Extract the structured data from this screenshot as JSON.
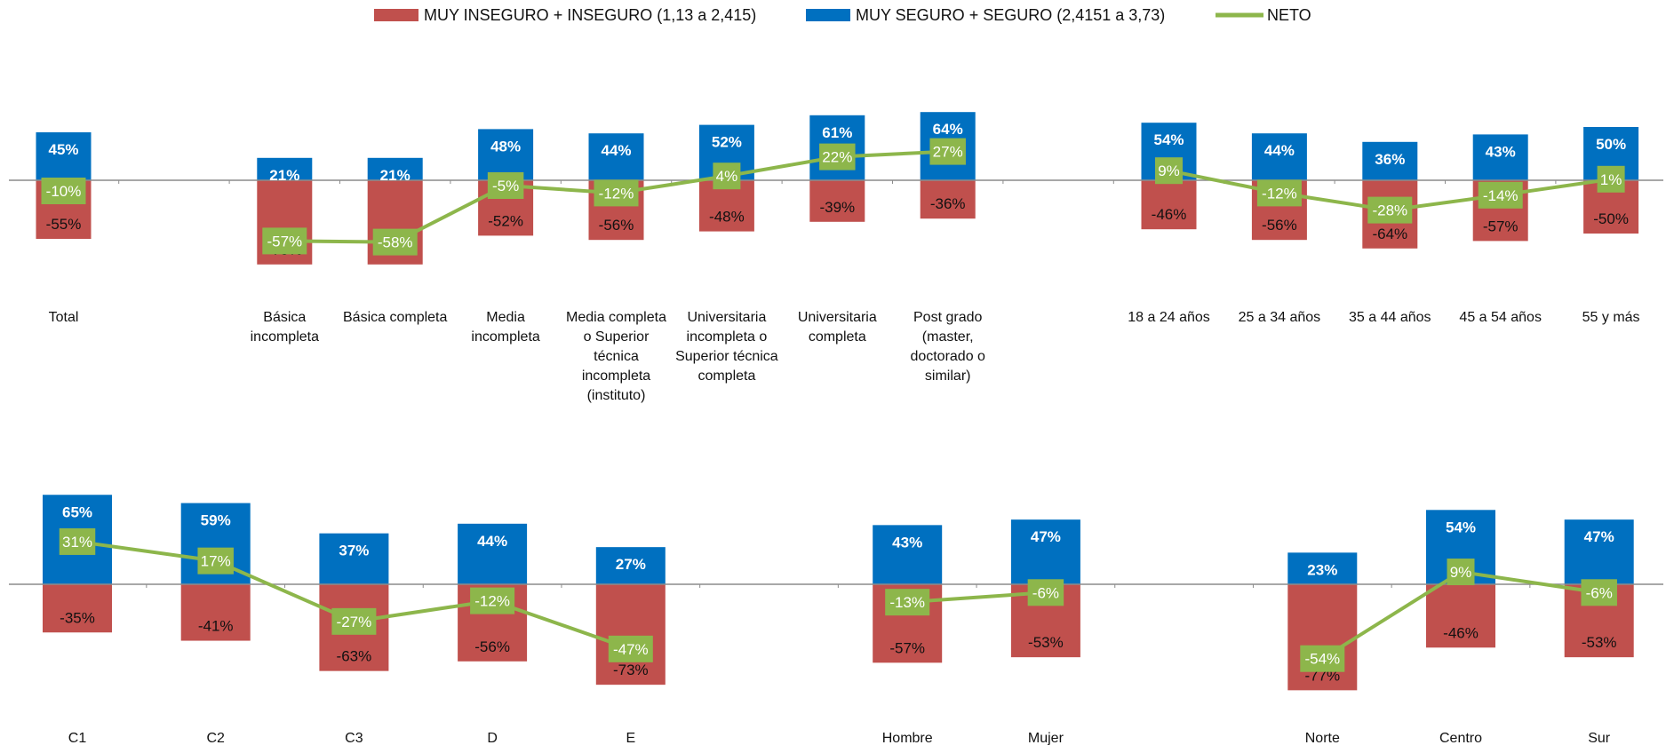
{
  "legend": [
    {
      "name": "MUY INSEGURO + INSEGURO (1,13 a 2,415)",
      "color": "#c0504d",
      "kind": "bar"
    },
    {
      "name": "MUY SEGURO + SEGURO (2,4151 a 3,73)",
      "color": "#0070c0",
      "kind": "bar"
    },
    {
      "name": "NETO",
      "color": "#8db64b",
      "kind": "line"
    }
  ],
  "chart_data": [
    {
      "type": "bar",
      "panel": "top",
      "categories": [
        "Total",
        "",
        "Básica incompleta",
        "Básica completa",
        "Media incompleta",
        "Media completa o Superior técnica incompleta (instituto)",
        "Universitaria incompleta o Superior técnica completa",
        "Universitaria completa",
        "Post grado (master, doctorado o similar)",
        "",
        "18 a 24 años",
        "25 a 34 años",
        "35 a 44 años",
        "45 a 54 años",
        "55 y más"
      ],
      "category_lines": [
        [
          "Total"
        ],
        [],
        [
          "Básica",
          "incompleta"
        ],
        [
          "Básica completa"
        ],
        [
          "Media",
          "incompleta"
        ],
        [
          "Media completa",
          "o Superior",
          "técnica",
          "incompleta",
          "(instituto)"
        ],
        [
          "Universitaria",
          "incompleta o",
          "Superior técnica",
          "completa"
        ],
        [
          "Universitaria",
          "completa"
        ],
        [
          "Post grado",
          "(master,",
          "doctorado o",
          "similar)"
        ],
        [],
        [
          "18 a 24 años"
        ],
        [
          "25 a 34 años"
        ],
        [
          "35 a 44 años"
        ],
        [
          "45 a 54 años"
        ],
        [
          "55 y más"
        ]
      ],
      "series": [
        {
          "name": "MUY SEGURO + SEGURO (2,4151 a 3,73)",
          "values": [
            45,
            null,
            21,
            21,
            48,
            44,
            52,
            61,
            64,
            null,
            54,
            44,
            36,
            43,
            50
          ]
        },
        {
          "name": "MUY INSEGURO + INSEGURO (1,13 a 2,415)",
          "values": [
            -55,
            null,
            -79,
            -79,
            -52,
            -56,
            -48,
            -39,
            -36,
            null,
            -46,
            -56,
            -64,
            -57,
            -50
          ]
        },
        {
          "name": "NETO",
          "values": [
            -10,
            null,
            -57,
            -58,
            -5,
            -12,
            4,
            22,
            27,
            null,
            9,
            -12,
            -28,
            -14,
            1
          ]
        }
      ],
      "line_groups": [
        [
          2,
          3,
          4,
          5,
          6,
          7,
          8
        ],
        [
          10,
          11,
          12,
          13,
          14
        ]
      ]
    },
    {
      "type": "bar",
      "panel": "bottom",
      "categories": [
        "C1",
        "C2",
        "C3",
        "D",
        "E",
        "",
        "Hombre",
        "Mujer",
        "",
        "Norte",
        "Centro",
        "Sur"
      ],
      "category_lines": [
        [
          "C1"
        ],
        [
          "C2"
        ],
        [
          "C3"
        ],
        [
          "D"
        ],
        [
          "E"
        ],
        [],
        [
          "Hombre"
        ],
        [
          "Mujer"
        ],
        [],
        [
          "Norte"
        ],
        [
          "Centro"
        ],
        [
          "Sur"
        ]
      ],
      "series": [
        {
          "name": "MUY SEGURO + SEGURO (2,4151 a 3,73)",
          "values": [
            65,
            59,
            37,
            44,
            27,
            null,
            43,
            47,
            null,
            23,
            54,
            47
          ]
        },
        {
          "name": "MUY INSEGURO + INSEGURO (1,13 a 2,415)",
          "values": [
            -35,
            -41,
            -63,
            -56,
            -73,
            null,
            -57,
            -53,
            null,
            -77,
            -46,
            -53
          ]
        },
        {
          "name": "NETO",
          "values": [
            31,
            17,
            -27,
            -12,
            -47,
            null,
            -13,
            -6,
            null,
            -54,
            9,
            -6
          ]
        }
      ],
      "line_groups": [
        [
          0,
          1,
          2,
          3,
          4
        ],
        [
          6,
          7
        ],
        [
          9,
          10,
          11
        ]
      ]
    }
  ],
  "colors": {
    "negative": "#c0504d",
    "positive": "#0070c0",
    "net": "#8db64b",
    "axis": "#8c8c8c"
  }
}
